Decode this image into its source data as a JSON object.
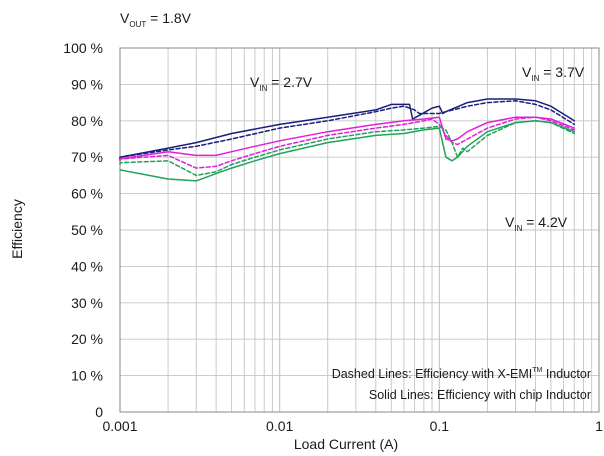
{
  "chart_data": {
    "type": "line",
    "title": "",
    "xlabel": "Load Current (A)",
    "ylabel": "Efficiency",
    "xscale": "log",
    "xlim": [
      0.001,
      1
    ],
    "ylim": [
      0,
      100
    ],
    "grid": true,
    "x_ticks": [
      "0.001",
      "0.01",
      "0.1",
      "1"
    ],
    "y_ticks": [
      "0",
      "10 %",
      "20 %",
      "30 %",
      "40 %",
      "50 %",
      "60 %",
      "70 %",
      "80 %",
      "90 %",
      "100 %"
    ],
    "header_label": {
      "main": "V",
      "sub": "OUT",
      "tail": " = 1.8V"
    },
    "annotations": [
      {
        "main": "V",
        "sub": "IN",
        "tail": " = 2.7V"
      },
      {
        "main": "V",
        "sub": "IN",
        "tail": " = 3.7V"
      },
      {
        "main": "V",
        "sub": "IN",
        "tail": " = 4.2V"
      }
    ],
    "notes": [
      {
        "text": "Dashed Lines: Efficiency with X-EMI",
        "sup": "TM",
        "tail": "  Inductor"
      },
      {
        "text": "Solid Lines: Efficiency with chip  Inductor",
        "sup": "",
        "tail": ""
      }
    ],
    "colors": {
      "vin_2_7": "#1a1f7a",
      "vin_3_7": "#e020d8",
      "vin_4_2": "#1fa35a",
      "grid": "#c4c4c4"
    },
    "series": [
      {
        "vin": "2.7V",
        "style": "solid",
        "color": "#1a1f7a",
        "x": [
          0.0009,
          0.001,
          0.002,
          0.003,
          0.005,
          0.01,
          0.02,
          0.04,
          0.05,
          0.06,
          0.065,
          0.068,
          0.075,
          0.09,
          0.1,
          0.105,
          0.11,
          0.15,
          0.2,
          0.3,
          0.4,
          0.5,
          0.7
        ],
        "y": [
          69.5,
          70,
          72.5,
          74,
          76.5,
          79,
          81,
          83,
          84.5,
          84.5,
          84.5,
          80.5,
          81.5,
          83.5,
          84,
          82,
          82.5,
          85,
          86,
          86,
          85.5,
          84,
          80
        ]
      },
      {
        "vin": "2.7V",
        "style": "dashed",
        "color": "#1a1f7a",
        "x": [
          0.0009,
          0.001,
          0.002,
          0.003,
          0.005,
          0.01,
          0.02,
          0.04,
          0.05,
          0.06,
          0.065,
          0.07,
          0.075,
          0.1,
          0.11,
          0.15,
          0.2,
          0.3,
          0.4,
          0.5,
          0.7
        ],
        "y": [
          69.5,
          70,
          72,
          73,
          75,
          78,
          80,
          82.5,
          83.5,
          84,
          83.5,
          83,
          82,
          82,
          82.5,
          84,
          85,
          85.5,
          84.5,
          83,
          79
        ]
      },
      {
        "vin": "3.7V",
        "style": "solid",
        "color": "#e020d8",
        "x": [
          0.0009,
          0.001,
          0.002,
          0.003,
          0.004,
          0.005,
          0.007,
          0.01,
          0.02,
          0.04,
          0.06,
          0.08,
          0.1,
          0.11,
          0.12,
          0.13,
          0.15,
          0.2,
          0.3,
          0.4,
          0.5,
          0.7
        ],
        "y": [
          69,
          69.5,
          71.5,
          70.5,
          70.5,
          71.5,
          73,
          74.5,
          77,
          79,
          80,
          80.5,
          81,
          75,
          74.5,
          75,
          77,
          79.5,
          81,
          81,
          80.5,
          78
        ]
      },
      {
        "vin": "3.7V",
        "style": "dashed",
        "color": "#e020d8",
        "x": [
          0.0009,
          0.001,
          0.002,
          0.003,
          0.004,
          0.005,
          0.007,
          0.01,
          0.02,
          0.04,
          0.06,
          0.08,
          0.09,
          0.1,
          0.11,
          0.12,
          0.13,
          0.15,
          0.2,
          0.3,
          0.4,
          0.5,
          0.7
        ],
        "y": [
          69,
          69.5,
          70.5,
          67,
          67.5,
          69,
          71,
          73,
          76,
          78,
          79,
          80,
          80.5,
          79,
          76,
          74,
          73.5,
          75,
          78,
          80.5,
          81,
          80,
          77.5
        ]
      },
      {
        "vin": "4.2V",
        "style": "solid",
        "color": "#1fa35a",
        "x": [
          0.0009,
          0.001,
          0.002,
          0.003,
          0.004,
          0.005,
          0.007,
          0.01,
          0.02,
          0.04,
          0.06,
          0.08,
          0.1,
          0.11,
          0.12,
          0.13,
          0.15,
          0.2,
          0.3,
          0.4,
          0.5,
          0.7
        ],
        "y": [
          66.5,
          66.5,
          64,
          63.5,
          65.5,
          67,
          69,
          71,
          74,
          76,
          76.5,
          77.5,
          78,
          70,
          69,
          70,
          73,
          77,
          79.5,
          80,
          79.5,
          77
        ]
      },
      {
        "vin": "4.2V",
        "style": "dashed",
        "color": "#1fa35a",
        "x": [
          0.0009,
          0.001,
          0.002,
          0.003,
          0.004,
          0.005,
          0.007,
          0.01,
          0.02,
          0.04,
          0.06,
          0.08,
          0.1,
          0.11,
          0.12,
          0.13,
          0.14,
          0.15,
          0.2,
          0.3,
          0.4,
          0.5,
          0.7
        ],
        "y": [
          68,
          68.5,
          69,
          65,
          66,
          68,
          70,
          72,
          75,
          77,
          77.5,
          78,
          78.5,
          77.5,
          74,
          70,
          72.5,
          71.5,
          76,
          79.5,
          80,
          79.5,
          76.5
        ]
      }
    ]
  }
}
